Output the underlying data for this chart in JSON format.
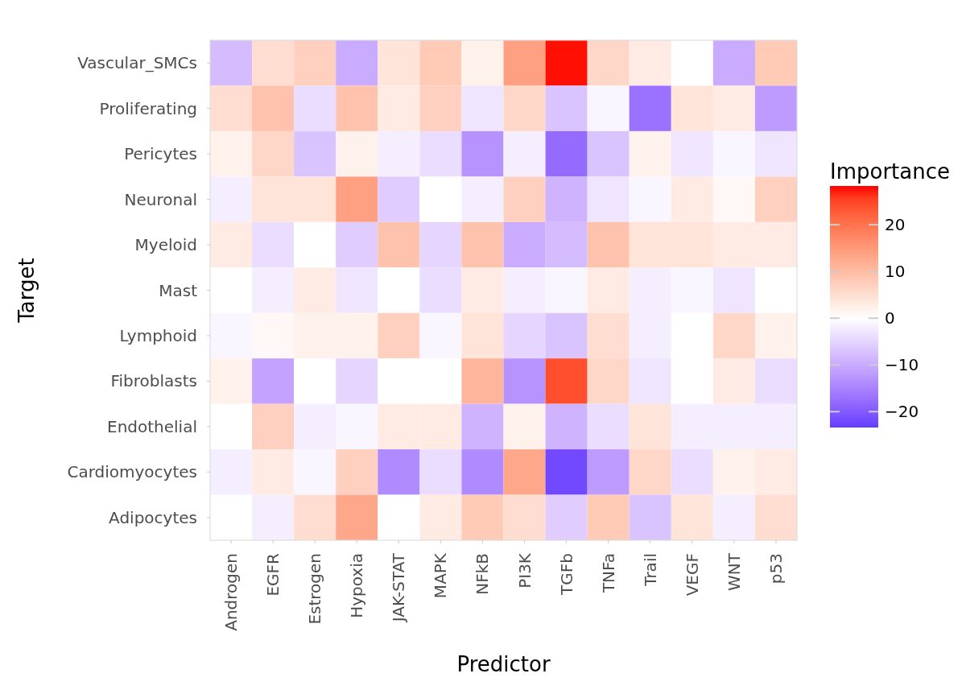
{
  "chart_data": {
    "type": "heatmap",
    "xlabel": "Predictor",
    "ylabel": "Target",
    "clabel": "Importance",
    "categories": [
      "Androgen",
      "EGFR",
      "Estrogen",
      "Hypoxia",
      "JAK-STAT",
      "MAPK",
      "NFkB",
      "PI3K",
      "TGFb",
      "TNFa",
      "Trail",
      "VEGF",
      "WNT",
      "p53"
    ],
    "y_categories": [
      "Vascular_SMCs",
      "Proliferating",
      "Pericytes",
      "Neuronal",
      "Myeloid",
      "Mast",
      "Lymphoid",
      "Fibroblasts",
      "Endothelial",
      "Cardiomyocytes",
      "Adipocytes"
    ],
    "cells": [
      [
        -8,
        5,
        7,
        -10,
        4,
        8,
        2,
        14,
        28,
        6,
        3,
        0,
        -10,
        8
      ],
      [
        5,
        9,
        -4,
        9,
        3,
        7,
        -3,
        6,
        -7,
        -1,
        -17,
        4,
        3,
        -12
      ],
      [
        2,
        6,
        -7,
        2,
        -2,
        -4,
        -13,
        -2,
        -18,
        -7,
        2,
        -3,
        -1,
        -3
      ],
      [
        -2,
        4,
        4,
        14,
        -6,
        0,
        -2,
        7,
        -9,
        -3,
        -1,
        3,
        1,
        7
      ],
      [
        3,
        -4,
        0,
        -6,
        9,
        -5,
        9,
        -10,
        -8,
        9,
        4,
        4,
        3,
        3
      ],
      [
        0,
        -2,
        3,
        -3,
        0,
        -4,
        3,
        -2,
        -1,
        3,
        -2,
        -1,
        -3,
        0
      ],
      [
        -1,
        1,
        2,
        2,
        7,
        -1,
        4,
        -5,
        -7,
        5,
        -2,
        0,
        6,
        2
      ],
      [
        2,
        -11,
        0,
        -5,
        0,
        0,
        11,
        -13,
        24,
        6,
        -3,
        0,
        3,
        -4
      ],
      [
        0,
        7,
        -2,
        -1,
        3,
        3,
        -9,
        2,
        -9,
        -4,
        4,
        -2,
        -2,
        -2
      ],
      [
        -2,
        3,
        -1,
        7,
        -14,
        -4,
        -14,
        13,
        -22,
        -12,
        6,
        -4,
        2,
        3
      ],
      [
        0,
        -2,
        5,
        13,
        0,
        3,
        8,
        5,
        -6,
        8,
        -7,
        4,
        -2,
        5
      ]
    ],
    "clim": [
      -23.4,
      28.3
    ],
    "cticks": [
      {
        "value": -20,
        "label": "−20"
      },
      {
        "value": -10,
        "label": "−10"
      },
      0,
      10,
      20
    ]
  }
}
